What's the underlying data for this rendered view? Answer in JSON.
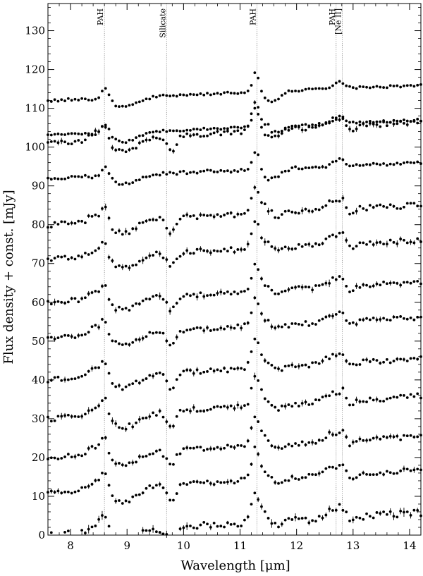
{
  "chart_data": {
    "type": "scatter",
    "title": "",
    "xlabel": "Wavelength [μm]",
    "ylabel": "Flux density + const. [mJy]",
    "xlim": [
      7.6,
      14.2
    ],
    "ylim": [
      0,
      137
    ],
    "x_ticks": [
      8,
      9,
      10,
      11,
      12,
      13,
      14
    ],
    "y_ticks": [
      0,
      10,
      20,
      30,
      40,
      50,
      60,
      70,
      80,
      90,
      100,
      110,
      120,
      130
    ],
    "x_tick_labels": [
      "8",
      "9",
      "10",
      "11",
      "12",
      "13",
      "14"
    ],
    "y_tick_labels": [
      "0",
      "10",
      "20",
      "30",
      "40",
      "50",
      "60",
      "70",
      "80",
      "90",
      "100",
      "110",
      "120",
      "130"
    ],
    "grid": false,
    "feature_lines": [
      {
        "x": 8.6,
        "label": "PAH"
      },
      {
        "x": 9.7,
        "label": "Silicate"
      },
      {
        "x": 11.3,
        "label": "PAH"
      },
      {
        "x": 12.7,
        "label": "PAH"
      },
      {
        "x": 12.81,
        "label": "[Ne II]"
      }
    ],
    "x_sampling": {
      "start": 7.6,
      "end": 14.2,
      "step": 0.06
    },
    "series": [
      {
        "offset": 0,
        "slope": 1.6,
        "noise": 0.9,
        "errbar": 0.75,
        "spectrum": "A"
      },
      {
        "offset": 11,
        "slope": 1.6,
        "noise": 0.6,
        "errbar": 0.5,
        "spectrum": "A"
      },
      {
        "offset": 20,
        "slope": 1.5,
        "noise": 0.6,
        "errbar": 0.5,
        "spectrum": "A"
      },
      {
        "offset": 30,
        "slope": 1.6,
        "noise": 0.7,
        "errbar": 0.6,
        "spectrum": "A"
      },
      {
        "offset": 40,
        "slope": 1.5,
        "noise": 0.6,
        "errbar": 0.5,
        "spectrum": "A"
      },
      {
        "offset": 51,
        "slope": 1.4,
        "noise": 0.6,
        "errbar": 0.5,
        "spectrum": "A"
      },
      {
        "offset": 60,
        "slope": 1.4,
        "noise": 0.7,
        "errbar": 0.6,
        "spectrum": "A"
      },
      {
        "offset": 71,
        "slope": 1.4,
        "noise": 0.7,
        "errbar": 0.6,
        "spectrum": "A"
      },
      {
        "offset": 80,
        "slope": 1.4,
        "noise": 0.7,
        "errbar": 0.6,
        "spectrum": "A"
      },
      {
        "offset": 92,
        "slope": 1.5,
        "noise": 0.4,
        "errbar": 0.3,
        "spectrum": "B"
      },
      {
        "offset": 101,
        "slope": 1.5,
        "noise": 0.6,
        "errbar": 0.5,
        "spectrum": "A"
      },
      {
        "offset": 103,
        "slope": 1.5,
        "noise": 0.3,
        "errbar": 0,
        "spectrum": "B"
      },
      {
        "offset": 112,
        "slope": 1.5,
        "noise": 0.3,
        "errbar": 0,
        "spectrum": "B"
      }
    ]
  }
}
